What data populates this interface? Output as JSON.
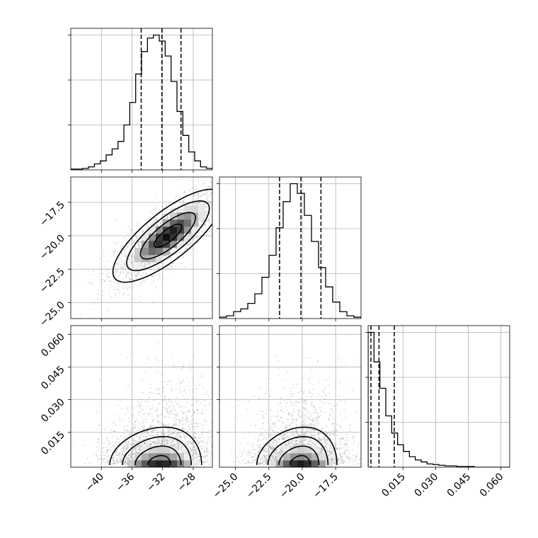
{
  "chart_data": {
    "type": "corner",
    "title": "",
    "parameters": [
      {
        "range": [
          -44.0,
          -25.5
        ],
        "ticks": [
          -40,
          -36,
          -32,
          -28
        ],
        "tick_labels": [
          "−40",
          "−36",
          "−32",
          "−28"
        ],
        "quantiles": [
          -34.8,
          -32.1,
          -29.6
        ]
      },
      {
        "range": [
          -26.2,
          -15.6
        ],
        "ticks": [
          -25.0,
          -22.5,
          -20.0,
          -17.5
        ],
        "tick_labels": [
          "−25.0",
          "−22.5",
          "−20.0",
          "−17.5"
        ],
        "quantiles": [
          -21.7,
          -20.1,
          -18.6
        ]
      },
      {
        "range": [
          -0.001,
          0.064
        ],
        "ticks": [
          0.015,
          0.03,
          0.045,
          0.06
        ],
        "tick_labels": [
          "0.015",
          "0.030",
          "0.045",
          "0.060"
        ],
        "quantiles": [
          0.0003,
          0.004,
          0.011
        ]
      }
    ],
    "histograms": [
      {
        "parameter": 0,
        "bin_range": [
          -44.0,
          -25.5
        ],
        "counts": [
          1,
          1,
          2,
          4,
          8,
          12,
          20,
          28,
          38,
          60,
          90,
          128,
          158,
          176,
          180,
          172,
          152,
          118,
          78,
          46,
          24,
          12,
          4,
          2
        ]
      },
      {
        "parameter": 1,
        "bin_range": [
          -26.2,
          -15.6
        ],
        "counts": [
          2,
          4,
          10,
          14,
          22,
          36,
          60,
          92,
          132,
          170,
          196,
          182,
          150,
          112,
          74,
          46,
          24,
          10,
          4,
          2
        ]
      },
      {
        "parameter": 2,
        "bin_range": [
          -0.001,
          0.064
        ],
        "counts": [
          205,
          160,
          120,
          78,
          52,
          34,
          24,
          16,
          11,
          8,
          5,
          4,
          3,
          2,
          2,
          1,
          1,
          1,
          0,
          0,
          0,
          0,
          0,
          0
        ]
      }
    ],
    "pairs": [
      {
        "x_parameter": 0,
        "y_parameter": 1,
        "center": [
          -31.3,
          -20.0
        ],
        "spread": [
          3.0,
          1.45
        ],
        "correlation": 0.78
      },
      {
        "x_parameter": 0,
        "y_parameter": 2,
        "center": [
          -32.3,
          0.0015
        ],
        "spread": [
          3.0,
          0.0075
        ],
        "correlation": 0.0
      },
      {
        "x_parameter": 1,
        "y_parameter": 2,
        "center": [
          -20.1,
          0.0015
        ],
        "spread": [
          1.5,
          0.0075
        ],
        "correlation": 0.0
      }
    ],
    "grid": true,
    "quantile_lines": "dashed",
    "legend": "none",
    "xlabel": "",
    "ylabel": ""
  }
}
